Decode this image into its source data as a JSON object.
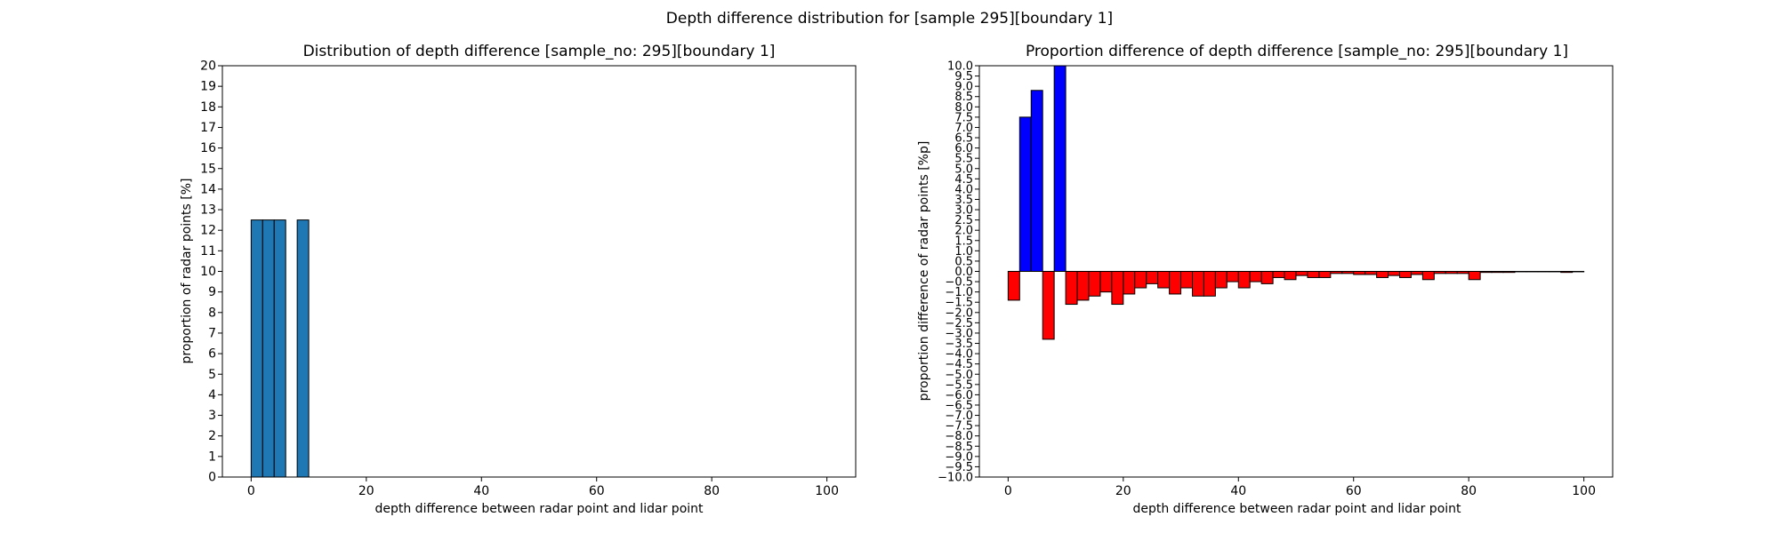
{
  "figure": {
    "suptitle": "Depth difference distribution for [sample 295][boundary 1]"
  },
  "chart_data": [
    {
      "type": "bar",
      "title": "Distribution of depth difference [sample_no: 295][boundary 1]",
      "xlabel": "depth difference between radar point and lidar point",
      "ylabel": "proportion of radar points [%]",
      "xlim": [
        -5,
        105
      ],
      "ylim": [
        0,
        20
      ],
      "xticks": [
        0,
        20,
        40,
        60,
        80,
        100
      ],
      "yticks": [
        0,
        1,
        2,
        3,
        4,
        5,
        6,
        7,
        8,
        9,
        10,
        11,
        12,
        13,
        14,
        15,
        16,
        17,
        18,
        19,
        20
      ],
      "bar_width": 2,
      "bar_color": "#1f77b4",
      "edge_color": "#000000",
      "x": [
        1,
        3,
        5,
        9
      ],
      "values": [
        12.5,
        12.5,
        12.5,
        12.5
      ],
      "grid": false
    },
    {
      "type": "bar",
      "title": "Proportion difference of depth difference [sample_no: 295][boundary 1]",
      "xlabel": "depth difference between radar point and lidar point",
      "ylabel": "proportion difference of radar points [%p]",
      "xlim": [
        -5,
        105
      ],
      "ylim": [
        -10,
        10
      ],
      "xticks": [
        0,
        20,
        40,
        60,
        80,
        100
      ],
      "ytick_step": 0.5,
      "bar_width": 2,
      "positive_color": "#0000ff",
      "negative_color": "#ff0000",
      "edge_color": "#000000",
      "x": [
        1,
        3,
        5,
        7,
        9,
        11,
        13,
        15,
        17,
        19,
        21,
        23,
        25,
        27,
        29,
        31,
        33,
        35,
        37,
        39,
        41,
        43,
        45,
        47,
        49,
        51,
        53,
        55,
        57,
        59,
        61,
        63,
        65,
        67,
        69,
        71,
        73,
        75,
        77,
        79,
        81,
        83,
        85,
        87,
        89,
        91,
        93,
        95,
        97,
        99
      ],
      "values": [
        -1.4,
        7.5,
        8.8,
        -3.3,
        10.6,
        -1.6,
        -1.4,
        -1.2,
        -1.0,
        -1.6,
        -1.1,
        -0.8,
        -0.6,
        -0.8,
        -1.1,
        -0.8,
        -1.2,
        -1.2,
        -0.8,
        -0.5,
        -0.8,
        -0.5,
        -0.6,
        -0.3,
        -0.4,
        -0.2,
        -0.3,
        -0.3,
        -0.1,
        -0.1,
        -0.15,
        -0.15,
        -0.3,
        -0.2,
        -0.3,
        -0.15,
        -0.4,
        -0.1,
        -0.1,
        -0.1,
        -0.4,
        -0.05,
        -0.05,
        -0.05,
        -0.02,
        -0.02,
        -0.02,
        -0.02,
        -0.05,
        -0.02
      ],
      "grid": false
    }
  ]
}
